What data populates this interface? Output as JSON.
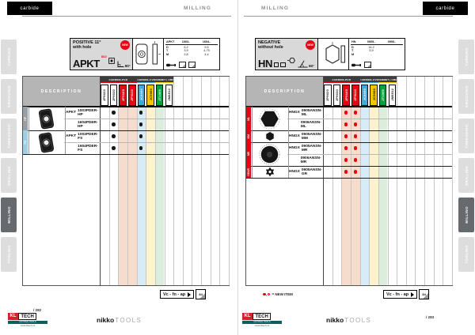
{
  "shared": {
    "sidebar": {
      "items": [
        "TURNING",
        "GROOVING",
        "THREADING",
        "DRILLING",
        "MILLING",
        "TOOLING"
      ],
      "active_index": 4
    },
    "columns": {
      "groups": [
        {
          "label": "CARBIDE-PVD",
          "span": 4,
          "accent": "#e30613"
        },
        {
          "label": "CARBIDE-CVD",
          "span": 2,
          "accent": "#3aa6d8"
        },
        {
          "label": "CERMET | CBN",
          "span": 2,
          "accent": "#f2c500"
        }
      ],
      "grades": [
        {
          "grade": "JP9020",
          "tag_bg": "#ffffff",
          "tag_fg": "#1a1a1a",
          "band": ""
        },
        {
          "grade": "JP9030",
          "tag_bg": "#ffffff",
          "tag_fg": "#1a1a1a",
          "band": ""
        },
        {
          "grade": "JP9105",
          "tag_bg": "#e30613",
          "tag_fg": "#ffffff",
          "band": "#f6dccd"
        },
        {
          "grade": "JP9110",
          "tag_bg": "#e30613",
          "tag_fg": "#ffffff",
          "band": "#f6dccd"
        },
        {
          "grade": "JC8050",
          "tag_bg": "#41a8d8",
          "tag_fg": "#ffffff",
          "band": "#d7ecf6"
        },
        {
          "grade": "JC9060",
          "tag_bg": "#f4c700",
          "tag_fg": "#1a1a1a",
          "band": "#fcf2cd"
        },
        {
          "grade": "JT1005",
          "tag_bg": "#00a33e",
          "tag_fg": "#ffffff",
          "band": "#dbeddc"
        },
        {
          "grade": "JM8512",
          "tag_bg": "#ffffff",
          "tag_fg": "#1a1a1a",
          "band": ""
        }
      ],
      "empty_columns": 6
    },
    "legend_ref": {
      "label": "Vc - fn - ap",
      "page": "84"
    },
    "brand": {
      "name": "nikko",
      "suffix": "TOOLS"
    },
    "kl_logo": {
      "kl": "KL",
      "tech": "TECH",
      "tagline": "CUTTING TOOLS",
      "web": "www.kltech.cz"
    }
  },
  "left_page": {
    "corner_tab": "carbide",
    "section": "MILLING",
    "page_number": "/ 282",
    "product": {
      "title1": "POSITIVE 11°",
      "title2": "with hole",
      "badge": "NEW",
      "code": "APKT",
      "iso": "ISO",
      "angle": "90°",
      "dims": {
        "headers": [
          "APKT",
          "1003..",
          "1604.."
        ],
        "rows": [
          [
            "D",
            "6,2",
            "9,5"
          ],
          [
            "T",
            "3,9",
            "4,75"
          ],
          [
            "M",
            "2,8",
            "4,4"
          ]
        ],
        "icons": [
          "screwdriver-icon",
          "page-ref-icon",
          "page-ref-icon"
        ]
      }
    },
    "table": {
      "description_header": "DESCRIPTION",
      "dot_color": "#1a1a1a",
      "groups": [
        {
          "tab": "HP",
          "tab_color": "#98a0a6",
          "shape": "apkt",
          "rows": [
            {
              "prefix": "APKT",
              "code": "1003PDER-HP",
              "dots": [
                1,
                4
              ]
            },
            {
              "prefix": "",
              "code": "1604PDER-HP",
              "dots": [
                1,
                4
              ]
            }
          ]
        },
        {
          "tab": "FS",
          "tab_color": "#9fcfe4",
          "shape": "apkt",
          "rows": [
            {
              "prefix": "APKT",
              "code": "1003PDER-FS",
              "dots": [
                1,
                4
              ]
            },
            {
              "prefix": "",
              "code": "1604PDER-FS",
              "dots": [
                1,
                4
              ]
            }
          ]
        }
      ]
    }
  },
  "right_page": {
    "corner_tab": "carbide",
    "section": "MILLING",
    "page_number": "/ 283",
    "new_item_note": "= NEW ITEM",
    "product": {
      "title1": "NEGATIVE",
      "title2": "without hole",
      "badge": "NEW",
      "code": "HN",
      "angle": "60°",
      "dims": {
        "headers": [
          "HN",
          "0905..",
          "0906.."
        ],
        "rows": [
          [
            "D",
            "14,2",
            ""
          ],
          [
            "T",
            "5,9",
            ""
          ],
          [
            "M",
            "-",
            ""
          ]
        ],
        "icons": [
          "screwdriver-icon",
          "page-ref-icon"
        ]
      }
    },
    "table": {
      "description_header": "DESCRIPTION",
      "dot_color": "#e30613",
      "groups": [
        {
          "tab": "ML",
          "tab_color": "#e30613",
          "shape": "hex",
          "rows": [
            {
              "prefix": "HNGX",
              "code": "0905ANSN-ML",
              "dots": [
                2,
                3
              ]
            },
            {
              "prefix": "",
              "code": "0906ANSN-ML",
              "dots": [
                2,
                3
              ]
            }
          ]
        },
        {
          "tab": "MM",
          "tab_color": "#e30613",
          "shape": "hex2",
          "rows": [
            {
              "prefix": "HNGX",
              "code": "0905ANSN-MM",
              "dots": [
                2,
                3
              ]
            }
          ]
        },
        {
          "tab": "MR",
          "tab_color": "#e30613",
          "shape": "round",
          "rows": [
            {
              "prefix": "HNGX",
              "code": "0905ANSN-MR",
              "dots": [
                2,
                3
              ]
            },
            {
              "prefix": "",
              "code": "0906ANSN-MR",
              "dots": [
                2,
                3
              ]
            }
          ]
        },
        {
          "tab": "GEAR",
          "tab_color": "#e30613",
          "shape": "gear",
          "rows": [
            {
              "prefix": "HNGX",
              "code": "0905ANSN-GR",
              "dots": [
                2,
                3
              ]
            }
          ]
        }
      ]
    }
  }
}
